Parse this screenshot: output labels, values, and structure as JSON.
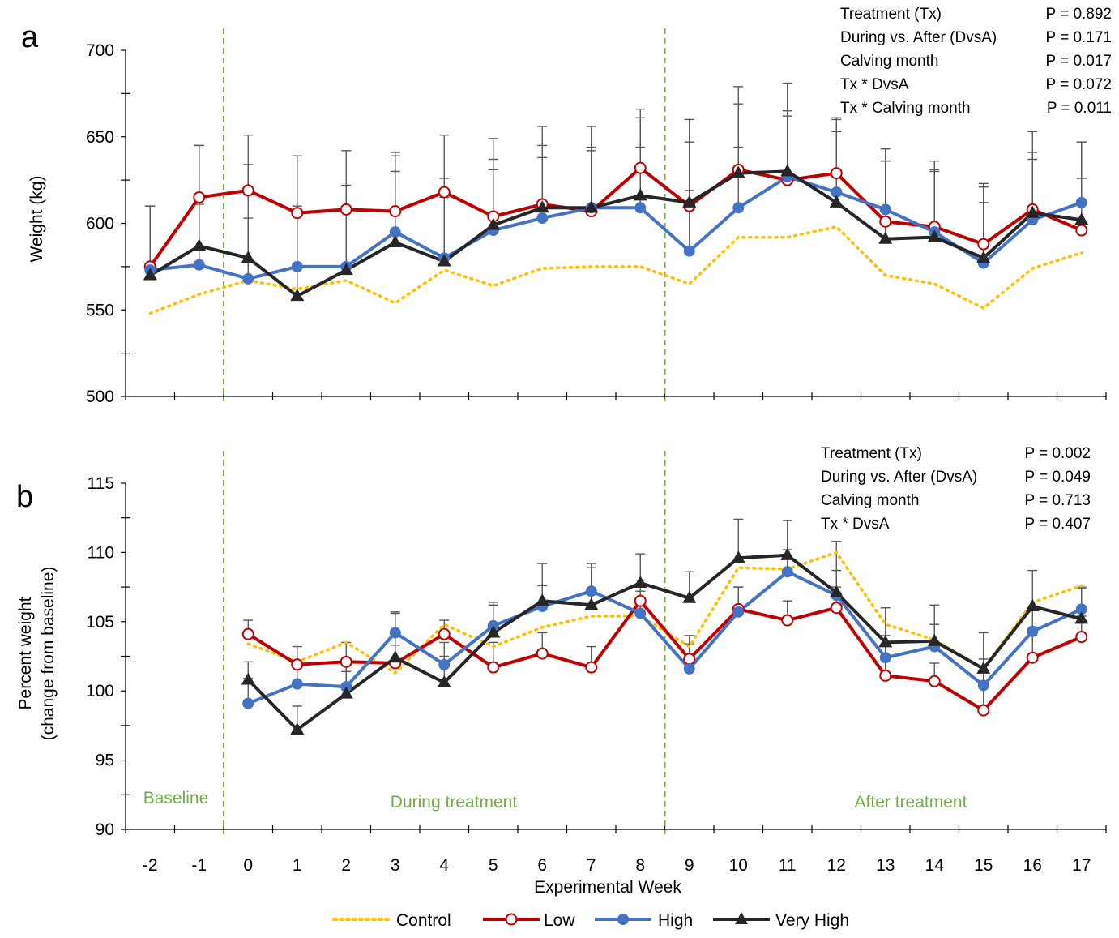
{
  "legend": [
    {
      "key": "control",
      "label": "Control"
    },
    {
      "key": "low",
      "label": "Low"
    },
    {
      "key": "high",
      "label": "High"
    },
    {
      "key": "veryhigh",
      "label": "Very High"
    }
  ],
  "colors": {
    "control": "#ffc000",
    "low": "#c00000",
    "high": "#4472c4",
    "veryhigh": "#262626",
    "phase": "#70ad47",
    "error": "#595959"
  },
  "x_label": "Experimental Week",
  "weeks": [
    "-2",
    "-1",
    "0",
    "1",
    "2",
    "3",
    "4",
    "5",
    "6",
    "7",
    "8",
    "9",
    "10",
    "11",
    "12",
    "13",
    "14",
    "15",
    "16",
    "17"
  ],
  "phases": [
    "Baseline",
    "During treatment",
    "After treatment"
  ],
  "chart_data": [
    {
      "type": "line",
      "panel": "a",
      "ylabel": "Weight (kg)",
      "ylim": [
        500,
        700
      ],
      "yticks": [
        "500",
        "550",
        "600",
        "650",
        "700"
      ],
      "x": [
        -2,
        -1,
        0,
        1,
        2,
        3,
        4,
        5,
        6,
        7,
        8,
        9,
        10,
        11,
        12,
        13,
        14,
        15,
        16,
        17
      ],
      "phase_dividers": [
        -0.5,
        8.5
      ],
      "stats": [
        {
          "term": "Treatment (Tx)",
          "p": "P = 0.892"
        },
        {
          "term": "During vs. After (DvsA)",
          "p": "P = 0.171"
        },
        {
          "term": "Calving month",
          "p": "P = 0.017"
        },
        {
          "term": "Tx * DvsA",
          "p": "P = 0.072"
        },
        {
          "term": "Tx * Calving month",
          "p": "P = 0.011"
        }
      ],
      "series": [
        {
          "name": "Control",
          "key": "control",
          "values": [
            548,
            559,
            567,
            562,
            567,
            554,
            573,
            564,
            574,
            575,
            575,
            565,
            592,
            592,
            598,
            570,
            565,
            551,
            574,
            583
          ],
          "err": [
            null,
            null,
            null,
            null,
            null,
            null,
            null,
            null,
            null,
            null,
            null,
            null,
            null,
            null,
            null,
            null,
            null,
            null,
            null,
            null
          ]
        },
        {
          "name": "Low",
          "key": "low",
          "values": [
            575,
            615,
            619,
            606,
            608,
            607,
            618,
            604,
            611,
            607,
            632,
            610,
            631,
            625,
            629,
            601,
            598,
            588,
            608,
            596
          ],
          "err": [
            35,
            30,
            32,
            33,
            34,
            34,
            33,
            33,
            34,
            35,
            34,
            37,
            38,
            40,
            32,
            35,
            33,
            33,
            33,
            30
          ]
        },
        {
          "name": "High",
          "key": "high",
          "values": [
            573,
            576,
            568,
            575,
            575,
            595,
            580,
            596,
            603,
            609,
            609,
            584,
            609,
            627,
            618,
            608,
            595,
            577,
            602,
            612
          ],
          "err": [
            37,
            35,
            35,
            35,
            35,
            35,
            35,
            35,
            35,
            35,
            35,
            35,
            35,
            35,
            35,
            35,
            35,
            35,
            35,
            35
          ]
        },
        {
          "name": "Very High",
          "key": "veryhigh",
          "values": [
            570,
            587,
            580,
            558,
            573,
            589,
            578,
            599,
            609,
            609,
            616,
            612,
            629,
            630,
            612,
            591,
            592,
            580,
            606,
            602
          ],
          "err": [
            40,
            58,
            54,
            50,
            49,
            50,
            48,
            50,
            47,
            47,
            45,
            48,
            50,
            51,
            48,
            45,
            44,
            43,
            47,
            45
          ]
        }
      ]
    },
    {
      "type": "line",
      "panel": "b",
      "ylabel": "Percent weight",
      "ylabel2": "(change from baseline)",
      "ylim": [
        90,
        115
      ],
      "yticks": [
        "90",
        "95",
        "100",
        "105",
        "110",
        "115"
      ],
      "x": [
        0,
        1,
        2,
        3,
        4,
        5,
        6,
        7,
        8,
        9,
        10,
        11,
        12,
        13,
        14,
        15,
        16,
        17
      ],
      "phase_dividers": [
        -0.5,
        8.5
      ],
      "stats": [
        {
          "term": "Treatment (Tx)",
          "p": "P = 0.002"
        },
        {
          "term": "During vs. After (DvsA)",
          "p": "P = 0.049"
        },
        {
          "term": "Calving month",
          "p": "P = 0.713"
        },
        {
          "term": "Tx * DvsA",
          "p": "P = 0.407"
        }
      ],
      "series": [
        {
          "name": "Control",
          "key": "control",
          "values": [
            103.4,
            102.1,
            103.5,
            101.3,
            104.8,
            103.2,
            104.6,
            105.4,
            105.4,
            103.2,
            108.9,
            108.8,
            110.0,
            104.8,
            103.7,
            101.6,
            106.4,
            107.6
          ],
          "err": [
            null,
            null,
            null,
            null,
            null,
            null,
            null,
            null,
            null,
            null,
            null,
            null,
            null,
            null,
            null,
            null,
            null,
            null
          ]
        },
        {
          "name": "Low",
          "key": "low",
          "values": [
            104.1,
            101.9,
            102.1,
            102.0,
            104.1,
            101.7,
            102.7,
            101.7,
            106.5,
            102.3,
            105.9,
            105.1,
            106.0,
            101.1,
            100.7,
            98.6,
            102.4,
            103.9
          ],
          "err": [
            1.0,
            1.3,
            1.4,
            1.3,
            1.0,
            1.8,
            1.5,
            1.5,
            1.5,
            1.7,
            1.6,
            1.4,
            1.5,
            1.4,
            1.3,
            1.6,
            1.6,
            1.5
          ]
        },
        {
          "name": "High",
          "key": "high",
          "values": [
            99.1,
            100.5,
            100.3,
            104.2,
            101.9,
            104.7,
            106.1,
            107.2,
            105.6,
            101.6,
            105.7,
            108.6,
            106.9,
            102.4,
            103.2,
            100.4,
            104.3,
            105.9
          ],
          "err": [
            1.8,
            1.6,
            1.6,
            1.5,
            1.6,
            1.5,
            1.5,
            1.7,
            1.6,
            1.8,
            1.8,
            1.6,
            1.8,
            1.6,
            1.6,
            1.9,
            1.6,
            1.6
          ]
        },
        {
          "name": "Very High",
          "key": "veryhigh",
          "values": [
            100.8,
            97.2,
            99.8,
            102.4,
            100.6,
            104.2,
            106.5,
            106.2,
            107.8,
            106.7,
            109.6,
            109.8,
            107.1,
            103.5,
            103.6,
            101.6,
            106.1,
            105.2
          ],
          "err": [
            1.3,
            1.7,
            1.6,
            3.2,
            1.9,
            2.2,
            2.7,
            3.0,
            2.1,
            1.9,
            2.8,
            2.5,
            3.7,
            2.5,
            2.6,
            2.6,
            2.6,
            2.2
          ]
        }
      ]
    }
  ]
}
